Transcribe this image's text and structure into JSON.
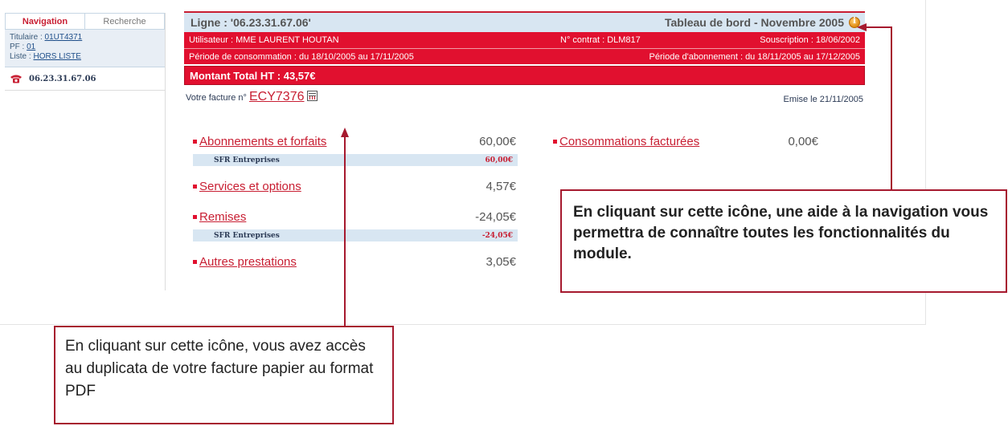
{
  "sidebar": {
    "tabs": [
      {
        "label": "Navigation"
      },
      {
        "label": "Recherche"
      }
    ],
    "titulaire_label": "Titulaire : ",
    "titulaire_value": "01UT4371",
    "pf_label": "PF : ",
    "pf_value": "01",
    "liste_label": "Liste : ",
    "liste_value": "HORS LISTE",
    "line_number": "06.23.31.67.06"
  },
  "header": {
    "line_title": "Ligne : '06.23.31.67.06'",
    "dashboard_title": "Tableau de bord - Novembre 2005"
  },
  "account": {
    "user": "Utilisateur : MME LAURENT HOUTAN",
    "contract": "N° contrat : DLM817",
    "subscription": "Souscription : 18/06/2002",
    "consumption_period": "Période de consommation : du 18/10/2005 au 17/11/2005",
    "subscription_period": "Période d'abonnement : du 18/11/2005 au 17/12/2005",
    "total": "Montant Total HT : 43,57€"
  },
  "invoice": {
    "label": "Votre facture n° ",
    "number": "ECY7376",
    "issued": "Emise le 21/11/2005"
  },
  "sections": {
    "abonnements": {
      "title": "Abonnements et forfaits",
      "amount": "60,00€",
      "sub_label": "SFR Entreprises",
      "sub_amount": "60,00€"
    },
    "services": {
      "title": "Services et options",
      "amount": "4,57€"
    },
    "remises": {
      "title": "Remises",
      "amount": "-24,05€",
      "sub_label": "SFR Entreprises",
      "sub_amount": "-24,05€"
    },
    "autres": {
      "title": "Autres prestations",
      "amount": "3,05€"
    },
    "consommations": {
      "title": "Consommations facturées",
      "amount": "0,00€"
    }
  },
  "callouts": {
    "help": "En cliquant sur cette icône, une aide à la navigation vous permettra de connaître toutes les fonctionnalités du module.",
    "pdf": "En cliquant sur cette icône, vous avez accès au duplicata de votre facture papier au format PDF"
  },
  "colors": {
    "brand_red": "#e1102f",
    "header_blue": "#d8e6f2",
    "callout_border": "#a6192e"
  },
  "icons": {
    "help": "info-icon",
    "pdf": "pdf-icon",
    "phone": "phone-icon"
  }
}
